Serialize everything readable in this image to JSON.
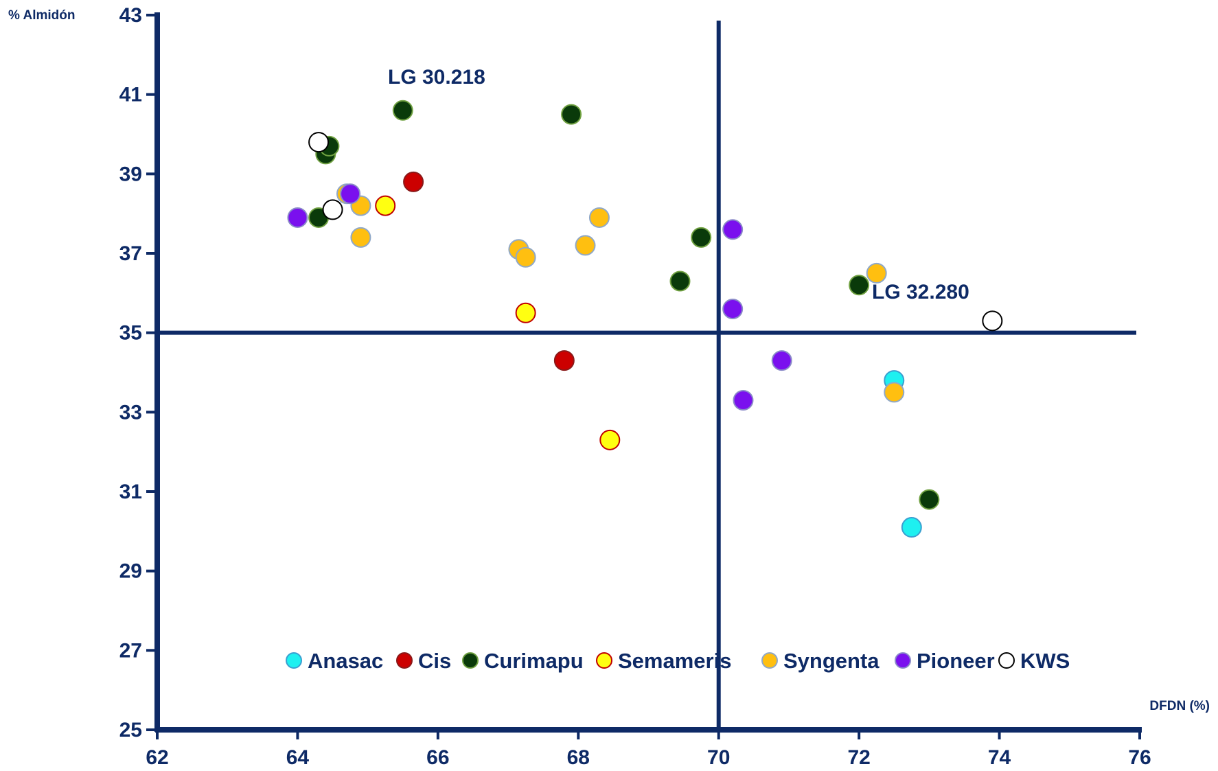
{
  "chart_data": {
    "type": "scatter",
    "xlabel": "DFDN (%)",
    "ylabel": "% Almidón",
    "xlim": [
      62,
      76
    ],
    "ylim": [
      25,
      43
    ],
    "xticks": [
      62,
      64,
      66,
      68,
      70,
      72,
      74,
      76
    ],
    "yticks": [
      25,
      27,
      29,
      31,
      33,
      35,
      37,
      39,
      41,
      43
    ],
    "reference_lines": {
      "x": 70,
      "y": 35
    },
    "grid": false,
    "legend_position": "bottom-center",
    "annotations": [
      {
        "text": "LG 30.218",
        "x": 65.5,
        "y": 40.6
      },
      {
        "text": "LG 32.280",
        "x": 73.9,
        "y": 35.3
      }
    ],
    "series": [
      {
        "name": "Anasac",
        "fill": "#1ef0f0",
        "stroke": "#3a9fd0",
        "points": [
          [
            72.5,
            33.8
          ],
          [
            72.75,
            30.1
          ]
        ]
      },
      {
        "name": "Cis",
        "fill": "#cc0000",
        "stroke": "#8a1a1a",
        "points": [
          [
            65.65,
            38.8
          ],
          [
            67.8,
            34.3
          ]
        ]
      },
      {
        "name": "Curimapu",
        "fill": "#0a3a0a",
        "stroke": "#6fa040",
        "points": [
          [
            64.4,
            39.5
          ],
          [
            64.45,
            39.7
          ],
          [
            64.3,
            37.9
          ],
          [
            65.5,
            40.6
          ],
          [
            67.9,
            40.5
          ],
          [
            69.75,
            37.4
          ],
          [
            69.45,
            36.3
          ],
          [
            72.0,
            36.2
          ],
          [
            73.0,
            30.8
          ]
        ]
      },
      {
        "name": "Semameris",
        "fill": "#ffff11",
        "stroke": "#c00000",
        "points": [
          [
            65.25,
            38.2
          ],
          [
            67.25,
            35.5
          ],
          [
            68.45,
            32.3
          ]
        ]
      },
      {
        "name": "Syngenta",
        "fill": "#ffbf10",
        "stroke": "#8fa8c8",
        "points": [
          [
            64.7,
            38.5
          ],
          [
            64.9,
            38.2
          ],
          [
            64.9,
            37.4
          ],
          [
            67.15,
            37.1
          ],
          [
            67.25,
            36.9
          ],
          [
            68.1,
            37.2
          ],
          [
            68.3,
            37.9
          ],
          [
            72.25,
            36.5
          ],
          [
            72.5,
            33.5
          ]
        ]
      },
      {
        "name": "Pioneer",
        "fill": "#7a10ee",
        "stroke": "#8a8ac8",
        "points": [
          [
            64.0,
            37.9
          ],
          [
            64.75,
            38.5
          ],
          [
            70.2,
            37.6
          ],
          [
            70.2,
            35.6
          ],
          [
            70.9,
            34.3
          ],
          [
            70.35,
            33.3
          ]
        ]
      },
      {
        "name": "KWS",
        "fill": "#ffffff",
        "stroke": "#000000",
        "points": [
          [
            64.3,
            39.8
          ],
          [
            64.5,
            38.1
          ],
          [
            73.9,
            35.3
          ]
        ]
      }
    ]
  }
}
